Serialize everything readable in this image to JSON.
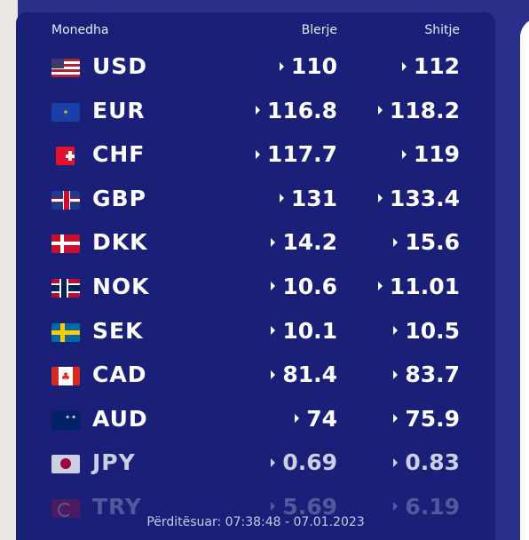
{
  "header": {
    "currency": "Monedha",
    "buy": "Blerje",
    "sell": "Shitje"
  },
  "rates": [
    {
      "code": "USD",
      "buy": "110",
      "sell": "112",
      "flag": "us-flag-icon"
    },
    {
      "code": "EUR",
      "buy": "116.8",
      "sell": "118.2",
      "flag": "eu-flag-icon"
    },
    {
      "code": "CHF",
      "buy": "117.7",
      "sell": "119",
      "flag": "ch-flag-icon"
    },
    {
      "code": "GBP",
      "buy": "131",
      "sell": "133.4",
      "flag": "gb-flag-icon"
    },
    {
      "code": "DKK",
      "buy": "14.2",
      "sell": "15.6",
      "flag": "dk-flag-icon"
    },
    {
      "code": "NOK",
      "buy": "10.6",
      "sell": "11.01",
      "flag": "no-flag-icon"
    },
    {
      "code": "SEK",
      "buy": "10.1",
      "sell": "10.5",
      "flag": "se-flag-icon"
    },
    {
      "code": "CAD",
      "buy": "81.4",
      "sell": "83.7",
      "flag": "ca-flag-icon"
    },
    {
      "code": "AUD",
      "buy": "74",
      "sell": "75.9",
      "flag": "au-flag-icon"
    },
    {
      "code": "JPY",
      "buy": "0.69",
      "sell": "0.83",
      "flag": "jp-flag-icon"
    },
    {
      "code": "TRY",
      "buy": "5.69",
      "sell": "6.19",
      "flag": "tr-flag-icon"
    }
  ],
  "footer": {
    "updated": "Përditësuar: 07:38:48 - 07.01.2023"
  },
  "colors": {
    "panel": "#1a1f78",
    "background": "#2a2f8a",
    "text": "#ffffff"
  }
}
